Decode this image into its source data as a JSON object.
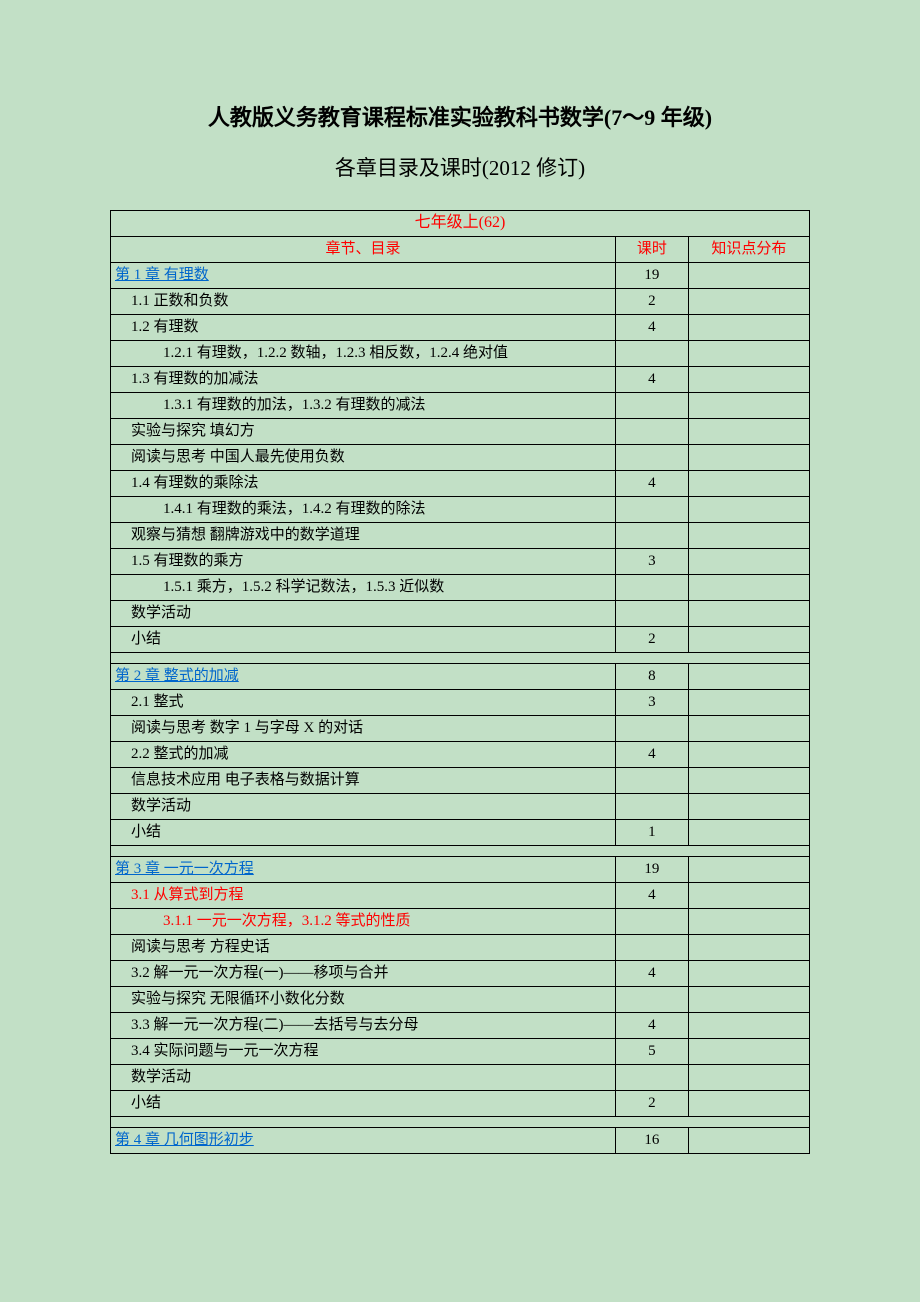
{
  "colors": {
    "page_background": "#c2e0c6",
    "border": "#000000",
    "text_black": "#000000",
    "text_red": "#ff0000",
    "text_blue": "#0066cc"
  },
  "fonts": {
    "body_family": "SimSun, 宋体, serif",
    "title_size_pt": 22,
    "subtitle_size_pt": 21,
    "cell_size_pt": 15
  },
  "title_line1": "人教版义务教育课程标准实验教科书数学(7～9 年级)",
  "title_line2": "各章目录及课时(2012 修订)",
  "table_header": {
    "grade_title": "七年级上(62)",
    "col_chapter": "章节、目录",
    "col_hours": "课时",
    "col_knowledge": "知识点分布"
  },
  "rows": [
    {
      "type": "chapter",
      "text": "第 1 章  有理数",
      "hours": "19"
    },
    {
      "type": "item1",
      "text": "1.1 正数和负数",
      "hours": "2"
    },
    {
      "type": "item1",
      "text": "1.2 有理数",
      "hours": "4"
    },
    {
      "type": "item2",
      "text": "1.2.1 有理数，1.2.2 数轴，1.2.3 相反数，1.2.4 绝对值",
      "hours": ""
    },
    {
      "type": "item1",
      "text": "1.3 有理数的加减法",
      "hours": "4"
    },
    {
      "type": "item2",
      "text": "1.3.1 有理数的加法，1.3.2 有理数的减法",
      "hours": ""
    },
    {
      "type": "item1",
      "text": "实验与探究 填幻方",
      "hours": ""
    },
    {
      "type": "item1",
      "text": "阅读与思考 中国人最先使用负数",
      "hours": ""
    },
    {
      "type": "item1",
      "text": "1.4 有理数的乘除法",
      "hours": "4"
    },
    {
      "type": "item2",
      "text": "1.4.1 有理数的乘法，1.4.2 有理数的除法",
      "hours": ""
    },
    {
      "type": "item1",
      "text": "观察与猜想   翻牌游戏中的数学道理",
      "hours": ""
    },
    {
      "type": "item1",
      "text": "1.5 有理数的乘方",
      "hours": "3"
    },
    {
      "type": "item2",
      "text": "1.5.1 乘方，1.5.2 科学记数法，1.5.3 近似数",
      "hours": ""
    },
    {
      "type": "item1",
      "text": "数学活动",
      "hours": ""
    },
    {
      "type": "item1",
      "text": "小结",
      "hours": "2"
    },
    {
      "type": "spacer"
    },
    {
      "type": "chapter",
      "text": "第 2 章   整式的加减",
      "hours": "8"
    },
    {
      "type": "item1",
      "text": "2.1   整式",
      "hours": "3"
    },
    {
      "type": "item1",
      "text": "阅读与思考   数字 1 与字母 X 的对话",
      "hours": ""
    },
    {
      "type": "item1",
      "text": "2.2 整式的加减",
      "hours": "4"
    },
    {
      "type": "item1",
      "text": "信息技术应用    电子表格与数据计算",
      "hours": ""
    },
    {
      "type": "item1",
      "text": "数学活动",
      "hours": ""
    },
    {
      "type": "item1",
      "text": "小结",
      "hours": "1"
    },
    {
      "type": "spacer"
    },
    {
      "type": "chapter",
      "text": "第 3 章   一元一次方程",
      "hours": "19"
    },
    {
      "type": "item1-red",
      "text": "3.1 从算式到方程",
      "hours": "4"
    },
    {
      "type": "item2-red",
      "text": "3.1.1 一元一次方程，3.1.2 等式的性质",
      "hours": ""
    },
    {
      "type": "item1",
      "text": "阅读与思考 方程史话",
      "hours": ""
    },
    {
      "type": "item1",
      "text": "3.2 解一元一次方程(一)——移项与合并",
      "hours": "4"
    },
    {
      "type": "item1",
      "text": "实验与探究    无限循环小数化分数",
      "hours": ""
    },
    {
      "type": "item1",
      "text": "3.3 解一元一次方程(二)——去括号与去分母",
      "hours": "4"
    },
    {
      "type": "item1",
      "text": "3.4 实际问题与一元一次方程",
      "hours": "5"
    },
    {
      "type": "item1",
      "text": "数学活动",
      "hours": ""
    },
    {
      "type": "item1",
      "text": "小结",
      "hours": "2"
    },
    {
      "type": "spacer"
    },
    {
      "type": "chapter",
      "text": "第 4 章   几何图形初步",
      "hours": "16"
    }
  ]
}
